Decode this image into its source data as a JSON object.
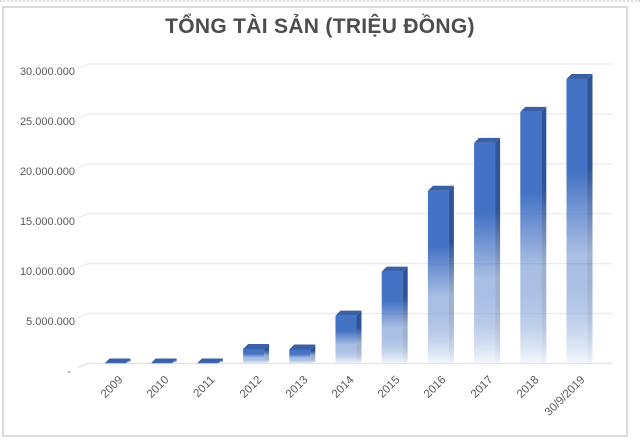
{
  "chart_data": {
    "type": "bar",
    "title": "TỔNG TÀI SẢN (TRIỆU ĐỒNG)",
    "unit": "triệu đồng",
    "categories": [
      "2009",
      "2010",
      "2011",
      "2012",
      "2013",
      "2014",
      "2015",
      "2016",
      "2017",
      "2018",
      "30/9/2019"
    ],
    "values": [
      100000,
      250000,
      450000,
      1950000,
      1900000,
      5300000,
      9700000,
      17800000,
      22600000,
      25700000,
      29000000
    ],
    "ylim": [
      0,
      30000000
    ],
    "ytick_step": 5000000,
    "ytick_labels": [
      "-",
      "5.000.000",
      "10.000.000",
      "15.000.000",
      "20.000.000",
      "25.000.000",
      "30.000.000"
    ],
    "x_label_rotation_deg": 45,
    "grid": true,
    "legend": "none",
    "bar_style": "3d-box-gradient-fade",
    "colors": {
      "bar_front_top": "#4472C4",
      "bar_front_fade": "#F5F8FC",
      "bar_side_top": "#2F5597",
      "bar_side_fade": "#EEF3FA",
      "bar_cap": "#3A60A8",
      "gridline": "#EBEBEB",
      "axis_line": "#E2E2E2",
      "tick_text": "#595959",
      "title_text": "#4D4D4D",
      "frame_border": "#DADADA",
      "background": "#FFFFFF"
    }
  }
}
